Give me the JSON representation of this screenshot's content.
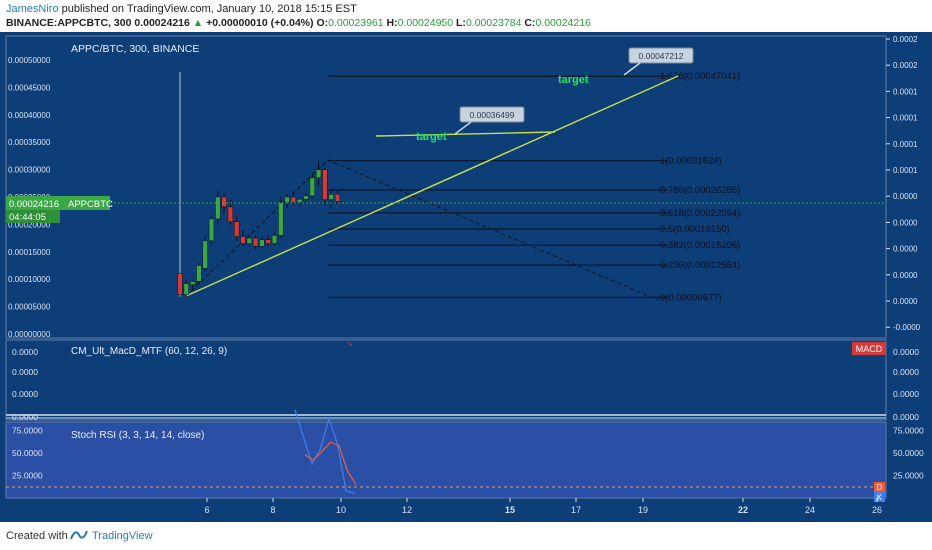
{
  "header": {
    "author": "JamesNiro",
    "published_text": "published on TradingView.com, January 10, 2018 15:15 EST",
    "symbol": "BINANCE:APPCBTC, 300",
    "price": "0.00024216",
    "change": "+0.00000010 (+0.04%)",
    "o_label": "O:",
    "o_value": "0.00023961",
    "h_label": "H:",
    "h_value": "0.00024950",
    "l_label": "L:",
    "l_value": "0.00023784",
    "c_label": "C:",
    "c_value": "0.00024216"
  },
  "main_pane": {
    "title": "APPC/BTC, 300, BINANCE",
    "price_tag": "0.00024216",
    "price_tag_symbol": "APPCBTC",
    "countdown": "04:44:05",
    "y_ticks": [
      0.0005,
      0.00045,
      0.0004,
      0.00035,
      0.0003,
      0.00025,
      0.0002,
      0.00015,
      0.0001,
      5e-05,
      0
    ],
    "y_tick_labels": [
      "0.00050000",
      "0.00045000",
      "0.00040000",
      "0.00035000",
      "0.00030000",
      "0.00025000",
      "0.00020000",
      "0.00015000",
      "0.00010000",
      "0.00005000",
      "0.00000000"
    ],
    "right_scale_labels": [
      "0.0002",
      "0.0002",
      "0.0001",
      "0.0001",
      "0.0001",
      "0.0001",
      "0.0000",
      "0.0000",
      "0.0000",
      "0.0000",
      "0.0000",
      "-0.0000"
    ]
  },
  "fib_levels": [
    {
      "label": "1.618(0.00047041)",
      "value": 0.00047041
    },
    {
      "label": "1(0.00031624)",
      "value": 0.00031624
    },
    {
      "label": "0.786(0.00026285)",
      "value": 0.00026285
    },
    {
      "label": "0.618(0.00022094)",
      "value": 0.00022094
    },
    {
      "label": "0.5(0.00019150)",
      "value": 0.0001915
    },
    {
      "label": "0.382(0.00016206)",
      "value": 0.00016206
    },
    {
      "label": "0.236(0.00012564)",
      "value": 0.00012564
    },
    {
      "label": "0(0.00006677)",
      "value": 6.677e-05
    }
  ],
  "annotations": [
    {
      "callout": "0.00047212",
      "target_label": "target"
    },
    {
      "callout": "0.00036499",
      "target_label": "target"
    }
  ],
  "macd_pane": {
    "title": "CM_Ult_MacD_MTF (60, 12, 26, 9)",
    "badge": "MACD",
    "left_labels": [
      "0.0000",
      "0.0000",
      "0.0000",
      "0.0000"
    ],
    "right_labels": [
      "0.0000",
      "0.0000",
      "0.0000",
      "0.0000"
    ]
  },
  "rsi_pane": {
    "title": "Stoch RSI (3, 3, 14, 14, close)",
    "y_ticks": [
      75,
      50,
      25
    ],
    "y_tick_labels": [
      "75.0000",
      "50.0000",
      "25.0000"
    ],
    "badge_d": "D",
    "badge_k": "K"
  },
  "x_axis": {
    "labels": [
      "6",
      "8",
      "10",
      "12",
      "15",
      "17",
      "19",
      "22",
      "24",
      "26"
    ],
    "bold": [
      "15",
      "22"
    ]
  },
  "colors": {
    "background": "#0e3e78",
    "up_candle": "#3aa844",
    "down_candle": "#d33a3a",
    "trendline": "#c9e04a",
    "target_text": "#27e06a",
    "k_line": "#3d7ff0",
    "d_line": "#ef5b3a"
  },
  "chart_data": {
    "type": "candlestick",
    "candles": [
      {
        "o": 0.00011,
        "h": 0.000478,
        "l": 6.8e-05,
        "c": 7.2e-05
      },
      {
        "o": 7.2e-05,
        "h": 9.8e-05,
        "l": 6.8e-05,
        "c": 9.2e-05
      },
      {
        "o": 9e-05,
        "h": 0.0001,
        "l": 8e-05,
        "c": 9.6e-05
      },
      {
        "o": 9.6e-05,
        "h": 0.00013,
        "l": 9e-05,
        "c": 0.000125
      },
      {
        "o": 0.00012,
        "h": 0.00018,
        "l": 0.000115,
        "c": 0.00017
      },
      {
        "o": 0.00017,
        "h": 0.000215,
        "l": 0.00016,
        "c": 0.00021
      },
      {
        "o": 0.00021,
        "h": 0.000262,
        "l": 0.0002,
        "c": 0.00025
      },
      {
        "o": 0.00025,
        "h": 0.000258,
        "l": 0.00022,
        "c": 0.000232
      },
      {
        "o": 0.000232,
        "h": 0.000245,
        "l": 0.0002,
        "c": 0.000205
      },
      {
        "o": 0.000205,
        "h": 0.000215,
        "l": 0.00017,
        "c": 0.000178
      },
      {
        "o": 0.000178,
        "h": 0.00019,
        "l": 0.00016,
        "c": 0.000165
      },
      {
        "o": 0.000165,
        "h": 0.00018,
        "l": 0.00016,
        "c": 0.000175
      },
      {
        "o": 0.000175,
        "h": 0.00018,
        "l": 0.000155,
        "c": 0.00016
      },
      {
        "o": 0.00016,
        "h": 0.000178,
        "l": 0.000158,
        "c": 0.000172
      },
      {
        "o": 0.000172,
        "h": 0.000178,
        "l": 0.00016,
        "c": 0.000165
      },
      {
        "o": 0.000165,
        "h": 0.000185,
        "l": 0.000162,
        "c": 0.00018
      },
      {
        "o": 0.00018,
        "h": 0.00025,
        "l": 0.000175,
        "c": 0.00024
      },
      {
        "o": 0.00024,
        "h": 0.000255,
        "l": 0.00023,
        "c": 0.00025
      },
      {
        "o": 0.00025,
        "h": 0.000262,
        "l": 0.000235,
        "c": 0.00024
      },
      {
        "o": 0.00024,
        "h": 0.00025,
        "l": 0.000232,
        "c": 0.000246
      },
      {
        "o": 0.000246,
        "h": 0.000258,
        "l": 0.000238,
        "c": 0.000252
      },
      {
        "o": 0.000252,
        "h": 0.00029,
        "l": 0.000248,
        "c": 0.000285
      },
      {
        "o": 0.000285,
        "h": 0.000316,
        "l": 0.00027,
        "c": 0.0003
      },
      {
        "o": 0.0003,
        "h": 0.000305,
        "l": 0.000235,
        "c": 0.000245
      },
      {
        "o": 0.000245,
        "h": 0.000262,
        "l": 0.00023,
        "c": 0.000255
      },
      {
        "o": 0.000255,
        "h": 0.000262,
        "l": 0.000238,
        "c": 0.000242
      }
    ],
    "stoch_rsi_k": [
      98,
      68,
      38,
      55,
      88,
      60,
      8,
      5
    ],
    "stoch_rsi_d": [
      48,
      42,
      52,
      62,
      58,
      30,
      15
    ],
    "ylim": [
      -3e-05,
      0.00053
    ]
  }
}
